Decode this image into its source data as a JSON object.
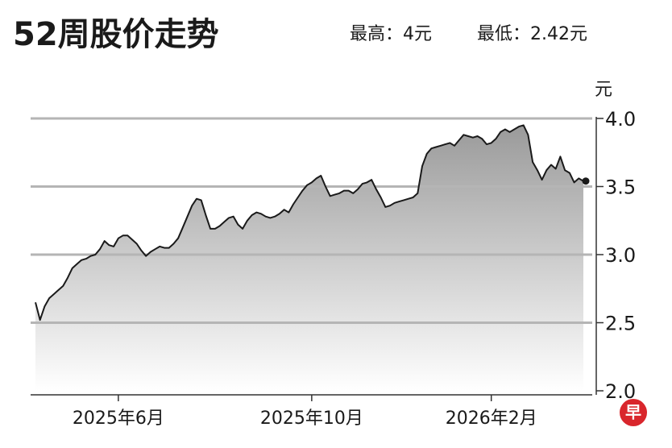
{
  "chart_data": {
    "type": "area",
    "title": "52周股价走势",
    "annotations": [
      "最高：4元",
      "最低：2.42元"
    ],
    "y_unit": "元",
    "categories": [
      null,
      null,
      null,
      null,
      null,
      null,
      null,
      null,
      null,
      null,
      null,
      null,
      null,
      null,
      null,
      null,
      null,
      null,
      "2025年6月",
      null,
      null,
      null,
      null,
      null,
      null,
      null,
      null,
      null,
      null,
      null,
      null,
      null,
      null,
      null,
      null,
      null,
      null,
      null,
      null,
      null,
      null,
      null,
      null,
      null,
      null,
      null,
      null,
      null,
      null,
      null,
      null,
      null,
      null,
      null,
      null,
      null,
      null,
      null,
      null,
      null,
      "2025年10月",
      null,
      null,
      null,
      null,
      null,
      null,
      null,
      null,
      null,
      null,
      null,
      null,
      null,
      null,
      null,
      null,
      null,
      null,
      null,
      null,
      null,
      null,
      null,
      null,
      null,
      null,
      null,
      null,
      null,
      null,
      null,
      null,
      null,
      null,
      null,
      null,
      null,
      null,
      "2026年2月",
      null,
      null,
      null,
      null,
      null,
      null,
      null,
      null,
      null,
      null,
      null,
      null,
      null,
      null,
      null,
      null,
      null,
      null,
      null,
      null
    ],
    "values": [
      2.65,
      2.52,
      2.62,
      2.68,
      2.71,
      2.74,
      2.77,
      2.83,
      2.9,
      2.93,
      2.96,
      2.97,
      2.99,
      3.0,
      3.04,
      3.1,
      3.07,
      3.06,
      3.12,
      3.14,
      3.14,
      3.11,
      3.08,
      3.03,
      2.99,
      3.02,
      3.04,
      3.06,
      3.05,
      3.05,
      3.08,
      3.12,
      3.2,
      3.28,
      3.36,
      3.41,
      3.4,
      3.29,
      3.19,
      3.19,
      3.21,
      3.24,
      3.27,
      3.28,
      3.22,
      3.19,
      3.25,
      3.29,
      3.31,
      3.3,
      3.28,
      3.27,
      3.28,
      3.3,
      3.33,
      3.31,
      3.37,
      3.42,
      3.47,
      3.51,
      3.53,
      3.56,
      3.58,
      3.5,
      3.43,
      3.44,
      3.45,
      3.47,
      3.47,
      3.45,
      3.48,
      3.52,
      3.53,
      3.55,
      3.48,
      3.42,
      3.35,
      3.36,
      3.38,
      3.39,
      3.4,
      3.41,
      3.42,
      3.45,
      3.65,
      3.74,
      3.78,
      3.79,
      3.8,
      3.81,
      3.82,
      3.8,
      3.84,
      3.88,
      3.87,
      3.86,
      3.87,
      3.85,
      3.81,
      3.82,
      3.85,
      3.9,
      3.92,
      3.9,
      3.92,
      3.94,
      3.95,
      3.88,
      3.68,
      3.62,
      3.55,
      3.62,
      3.66,
      3.63,
      3.72,
      3.62,
      3.6,
      3.53,
      3.56,
      3.54
    ],
    "color": "#1a1a1a",
    "ylim": [
      2.0,
      4.0
    ],
    "yticks": [
      {
        "value": 2.0,
        "label": "2.0"
      },
      2.5,
      {
        "value": 3.0,
        "label": "3.0"
      },
      3.5,
      {
        "value": 4.0,
        "label": "4.0"
      }
    ],
    "grid": true
  },
  "logo": "早"
}
